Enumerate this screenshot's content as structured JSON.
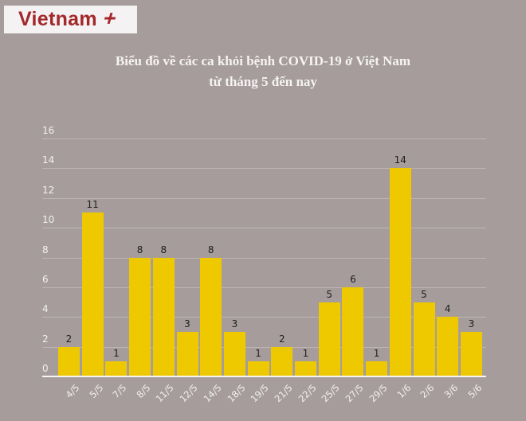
{
  "logo": {
    "text": "Vietnam",
    "plus": "+",
    "color": "#a3282b"
  },
  "title": {
    "line1": "Biểu đồ về các ca khỏi bệnh COVID-19 ở Việt Nam",
    "line2": "từ tháng 5 đến nay"
  },
  "colors": {
    "background": "#a69c9c",
    "bar": "#eec900",
    "grid": "#bdb5b5"
  },
  "chart_data": {
    "type": "bar",
    "title": "Biểu đồ về các ca khỏi bệnh COVID-19 ở Việt Nam từ tháng 5 đến nay",
    "categories": [
      "4/5",
      "5/5",
      "7/5",
      "8/5",
      "11/5",
      "12/5",
      "14/5",
      "18/5",
      "19/5",
      "21/5",
      "22/5",
      "25/5",
      "27/5",
      "29/5",
      "1/6",
      "2/6",
      "3/6",
      "5/6"
    ],
    "values": [
      2,
      11,
      1,
      8,
      8,
      3,
      8,
      3,
      1,
      2,
      1,
      5,
      6,
      1,
      14,
      5,
      4,
      3
    ],
    "xlabel": "",
    "ylabel": "",
    "ylim": [
      0,
      16
    ],
    "yticks": [
      "0",
      "2",
      "4",
      "6",
      "8",
      "10",
      "12",
      "14",
      "16"
    ],
    "grid": true,
    "legend": "none",
    "data_labels": true
  }
}
